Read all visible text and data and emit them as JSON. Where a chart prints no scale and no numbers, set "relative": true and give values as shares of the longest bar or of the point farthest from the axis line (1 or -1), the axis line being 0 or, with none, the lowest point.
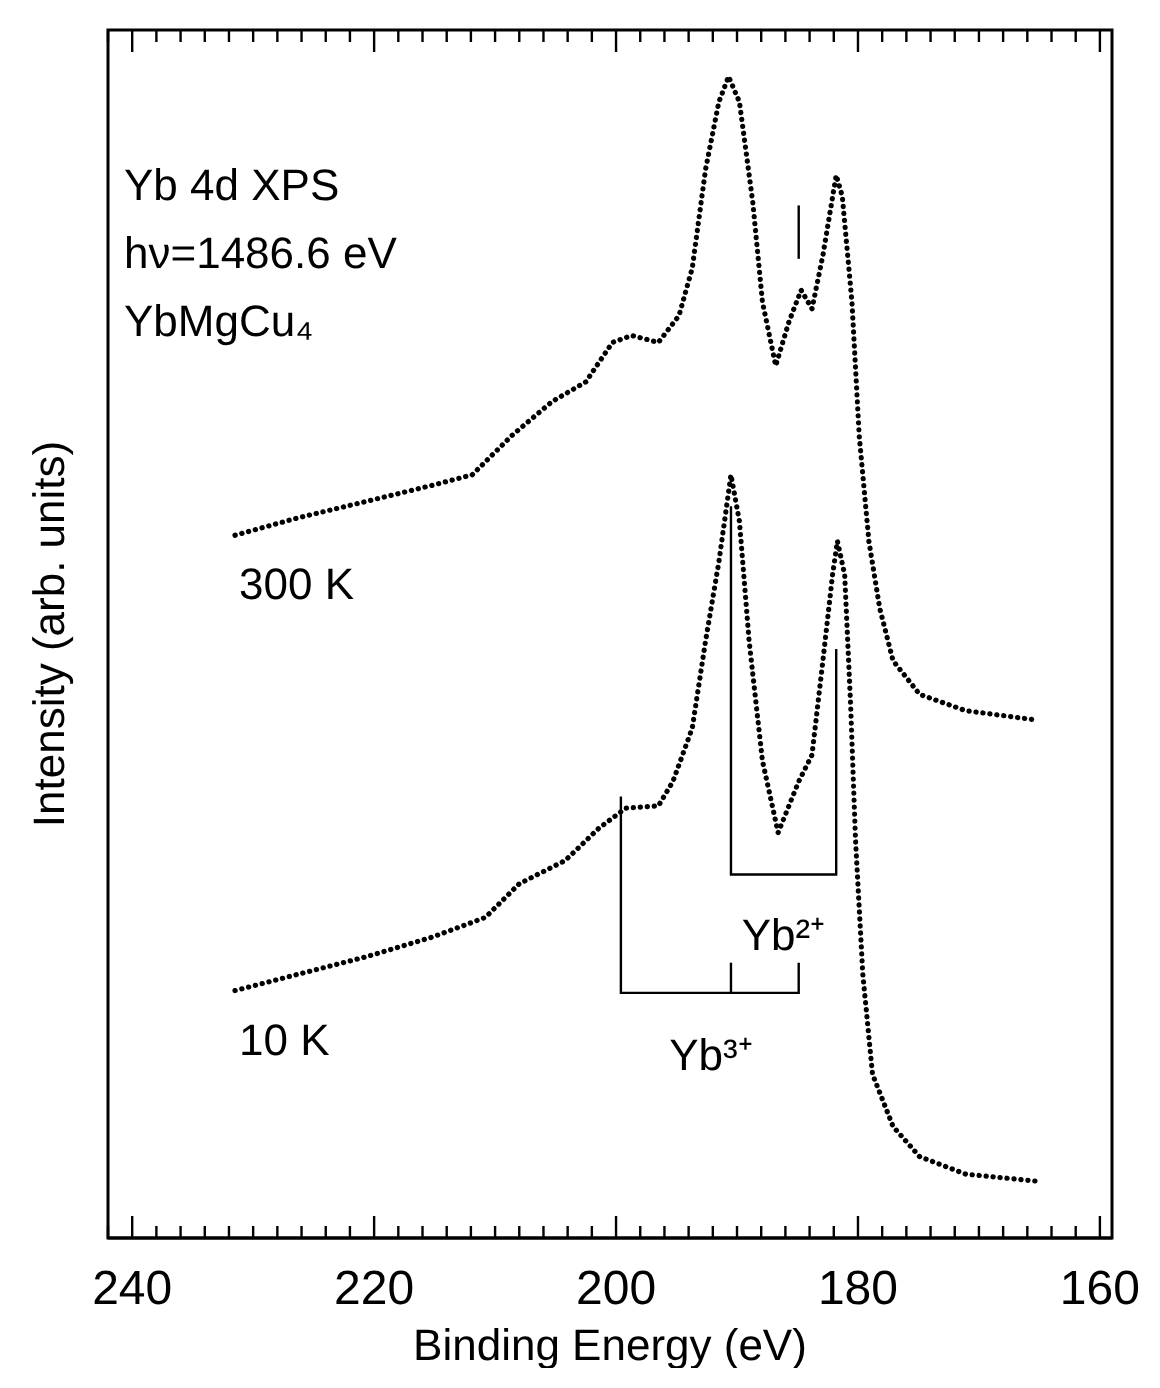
{
  "chart_data": {
    "type": "line",
    "relative": true,
    "xlabel": "Binding Energy (eV)",
    "ylabel": "Intensity (arb. units)",
    "xlim": [
      242,
      159
    ],
    "xticks": [
      240,
      220,
      200,
      180,
      160
    ],
    "marker": "none",
    "line_style": "dotted",
    "annotations": [
      "Yb 4d XPS",
      "hν=1486.6 eV",
      "YbMgCu₄",
      "Yb²⁺",
      "Yb³⁺"
    ],
    "series": [
      {
        "name": "300 K",
        "color": "#000000",
        "x": [
          231.5,
          226.3,
          220.7,
          215.2,
          211.9,
          208.6,
          205.3,
          202.5,
          200.3,
          198.7,
          196.5,
          194.8,
          193.7,
          192.6,
          191.5,
          190.7,
          189.8,
          188.7,
          187.9,
          186.8,
          185.7,
          184.7,
          183.8,
          182.9,
          181.8,
          181.3,
          180.5,
          179.9,
          179.1,
          178.2,
          177.1,
          174.9,
          171.1,
          165.3
        ],
        "values": [
          0.605,
          0.62,
          0.634,
          0.648,
          0.657,
          0.691,
          0.72,
          0.737,
          0.771,
          0.777,
          0.771,
          0.794,
          0.835,
          0.92,
          0.978,
          1,
          0.978,
          0.892,
          0.806,
          0.751,
          0.789,
          0.816,
          0.8,
          0.846,
          0.915,
          0.897,
          0.806,
          0.691,
          0.6,
          0.542,
          0.497,
          0.468,
          0.454,
          0.446
        ]
      },
      {
        "name": "10 K",
        "color": "#000000",
        "x": [
          231.5,
          226.3,
          220.7,
          215.2,
          210.8,
          208.0,
          204.2,
          201.4,
          199.2,
          196.5,
          195.3,
          193.7,
          192.6,
          191.5,
          190.5,
          189.8,
          189.0,
          187.9,
          186.6,
          184.9,
          183.8,
          182.9,
          182.1,
          181.7,
          181.1,
          180.6,
          180.2,
          179.6,
          178.8,
          177.1,
          174.9,
          171.1,
          165.3
        ],
        "values": [
          0.213,
          0.227,
          0.242,
          0.259,
          0.276,
          0.305,
          0.325,
          0.353,
          0.37,
          0.372,
          0.393,
          0.439,
          0.514,
          0.582,
          0.657,
          0.617,
          0.514,
          0.411,
          0.349,
          0.393,
          0.416,
          0.497,
          0.571,
          0.6,
          0.571,
          0.457,
          0.342,
          0.227,
          0.141,
          0.096,
          0.07,
          0.055,
          0.049
        ]
      }
    ]
  }
}
